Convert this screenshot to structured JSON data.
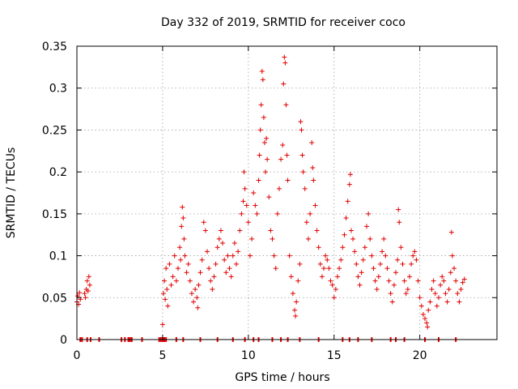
{
  "chart_data": {
    "type": "scatter",
    "title": "Day 332 of 2019, SRMTID for receiver coco",
    "xlabel": "GPS time / hours",
    "ylabel": "SRMTID / TECUs",
    "xlim": [
      0,
      24.5
    ],
    "ylim": [
      0,
      0.35
    ],
    "xticks": [
      0,
      5,
      10,
      15,
      20
    ],
    "yticks": [
      0,
      0.05,
      0.1,
      0.15,
      0.2,
      0.25,
      0.3,
      0.35
    ],
    "ytick_labels": [
      "0",
      "0.05",
      "0.1",
      "0.15",
      "0.2",
      "0.25",
      "0.3",
      "0.35"
    ],
    "grid": true,
    "series": [
      {
        "name": "SRMTID",
        "color": "#e00000",
        "marker": "+",
        "points": [
          [
            0.0,
            0.045
          ],
          [
            0.05,
            0.052
          ],
          [
            0.1,
            0.042
          ],
          [
            0.15,
            0.056
          ],
          [
            0.2,
            0.048
          ],
          [
            0.45,
            0.055
          ],
          [
            0.5,
            0.05
          ],
          [
            0.55,
            0.06
          ],
          [
            0.6,
            0.07
          ],
          [
            0.65,
            0.058
          ],
          [
            0.7,
            0.075
          ],
          [
            0.75,
            0.065
          ],
          [
            5.0,
            0.018
          ],
          [
            5.05,
            0.055
          ],
          [
            5.1,
            0.07
          ],
          [
            5.15,
            0.048
          ],
          [
            5.2,
            0.085
          ],
          [
            5.25,
            0.06
          ],
          [
            5.3,
            0.04
          ],
          [
            5.4,
            0.09
          ],
          [
            5.5,
            0.065
          ],
          [
            5.6,
            0.075
          ],
          [
            5.7,
            0.1
          ],
          [
            5.8,
            0.07
          ],
          [
            5.9,
            0.085
          ],
          [
            6.0,
            0.11
          ],
          [
            6.05,
            0.095
          ],
          [
            6.1,
            0.135
          ],
          [
            6.15,
            0.158
          ],
          [
            6.2,
            0.145
          ],
          [
            6.25,
            0.12
          ],
          [
            6.3,
            0.1
          ],
          [
            6.4,
            0.08
          ],
          [
            6.5,
            0.09
          ],
          [
            6.6,
            0.07
          ],
          [
            6.7,
            0.055
          ],
          [
            6.8,
            0.045
          ],
          [
            6.9,
            0.06
          ],
          [
            7.0,
            0.05
          ],
          [
            7.05,
            0.038
          ],
          [
            7.1,
            0.065
          ],
          [
            7.2,
            0.08
          ],
          [
            7.3,
            0.095
          ],
          [
            7.4,
            0.14
          ],
          [
            7.5,
            0.13
          ],
          [
            7.6,
            0.105
          ],
          [
            7.7,
            0.085
          ],
          [
            7.8,
            0.07
          ],
          [
            7.9,
            0.06
          ],
          [
            8.0,
            0.075
          ],
          [
            8.1,
            0.09
          ],
          [
            8.2,
            0.11
          ],
          [
            8.3,
            0.12
          ],
          [
            8.4,
            0.13
          ],
          [
            8.5,
            0.115
          ],
          [
            8.6,
            0.095
          ],
          [
            8.7,
            0.08
          ],
          [
            8.8,
            0.1
          ],
          [
            8.9,
            0.085
          ],
          [
            9.0,
            0.075
          ],
          [
            9.1,
            0.1
          ],
          [
            9.2,
            0.115
          ],
          [
            9.3,
            0.09
          ],
          [
            9.4,
            0.105
          ],
          [
            9.5,
            0.13
          ],
          [
            9.6,
            0.15
          ],
          [
            9.7,
            0.165
          ],
          [
            9.75,
            0.2
          ],
          [
            9.8,
            0.18
          ],
          [
            9.9,
            0.16
          ],
          [
            10.0,
            0.14
          ],
          [
            10.1,
            0.1
          ],
          [
            10.2,
            0.12
          ],
          [
            10.3,
            0.175
          ],
          [
            10.4,
            0.16
          ],
          [
            10.5,
            0.15
          ],
          [
            10.6,
            0.19
          ],
          [
            10.65,
            0.22
          ],
          [
            10.7,
            0.25
          ],
          [
            10.75,
            0.28
          ],
          [
            10.8,
            0.32
          ],
          [
            10.85,
            0.31
          ],
          [
            10.9,
            0.265
          ],
          [
            10.95,
            0.235
          ],
          [
            11.0,
            0.2
          ],
          [
            11.05,
            0.24
          ],
          [
            11.1,
            0.215
          ],
          [
            11.2,
            0.17
          ],
          [
            11.3,
            0.13
          ],
          [
            11.4,
            0.12
          ],
          [
            11.5,
            0.1
          ],
          [
            11.6,
            0.085
          ],
          [
            11.7,
            0.15
          ],
          [
            11.8,
            0.18
          ],
          [
            11.9,
            0.215
          ],
          [
            12.0,
            0.232
          ],
          [
            12.05,
            0.305
          ],
          [
            12.1,
            0.337
          ],
          [
            12.15,
            0.33
          ],
          [
            12.2,
            0.28
          ],
          [
            12.25,
            0.22
          ],
          [
            12.3,
            0.19
          ],
          [
            12.4,
            0.1
          ],
          [
            12.5,
            0.075
          ],
          [
            12.6,
            0.055
          ],
          [
            12.7,
            0.035
          ],
          [
            12.75,
            0.028
          ],
          [
            12.8,
            0.045
          ],
          [
            12.9,
            0.07
          ],
          [
            13.0,
            0.09
          ],
          [
            13.05,
            0.26
          ],
          [
            13.1,
            0.25
          ],
          [
            13.15,
            0.22
          ],
          [
            13.2,
            0.2
          ],
          [
            13.3,
            0.18
          ],
          [
            13.4,
            0.14
          ],
          [
            13.5,
            0.12
          ],
          [
            13.6,
            0.15
          ],
          [
            13.7,
            0.235
          ],
          [
            13.75,
            0.205
          ],
          [
            13.8,
            0.19
          ],
          [
            13.9,
            0.16
          ],
          [
            14.0,
            0.13
          ],
          [
            14.1,
            0.11
          ],
          [
            14.2,
            0.09
          ],
          [
            14.3,
            0.075
          ],
          [
            14.4,
            0.085
          ],
          [
            14.5,
            0.1
          ],
          [
            14.6,
            0.095
          ],
          [
            14.7,
            0.085
          ],
          [
            14.8,
            0.07
          ],
          [
            14.9,
            0.065
          ],
          [
            15.0,
            0.05
          ],
          [
            15.1,
            0.06
          ],
          [
            15.2,
            0.075
          ],
          [
            15.3,
            0.085
          ],
          [
            15.4,
            0.095
          ],
          [
            15.5,
            0.11
          ],
          [
            15.6,
            0.125
          ],
          [
            15.7,
            0.145
          ],
          [
            15.8,
            0.165
          ],
          [
            15.9,
            0.185
          ],
          [
            15.95,
            0.197
          ],
          [
            16.0,
            0.13
          ],
          [
            16.1,
            0.12
          ],
          [
            16.2,
            0.105
          ],
          [
            16.3,
            0.09
          ],
          [
            16.4,
            0.075
          ],
          [
            16.5,
            0.065
          ],
          [
            16.6,
            0.08
          ],
          [
            16.7,
            0.095
          ],
          [
            16.8,
            0.11
          ],
          [
            16.9,
            0.135
          ],
          [
            17.0,
            0.15
          ],
          [
            17.1,
            0.12
          ],
          [
            17.2,
            0.1
          ],
          [
            17.3,
            0.085
          ],
          [
            17.4,
            0.07
          ],
          [
            17.5,
            0.06
          ],
          [
            17.6,
            0.075
          ],
          [
            17.7,
            0.09
          ],
          [
            17.8,
            0.105
          ],
          [
            17.9,
            0.12
          ],
          [
            18.0,
            0.1
          ],
          [
            18.1,
            0.085
          ],
          [
            18.2,
            0.07
          ],
          [
            18.3,
            0.055
          ],
          [
            18.4,
            0.045
          ],
          [
            18.5,
            0.065
          ],
          [
            18.6,
            0.08
          ],
          [
            18.7,
            0.095
          ],
          [
            18.75,
            0.155
          ],
          [
            18.8,
            0.14
          ],
          [
            18.9,
            0.11
          ],
          [
            19.0,
            0.09
          ],
          [
            19.1,
            0.07
          ],
          [
            19.2,
            0.055
          ],
          [
            19.3,
            0.06
          ],
          [
            19.4,
            0.075
          ],
          [
            19.5,
            0.09
          ],
          [
            19.6,
            0.1
          ],
          [
            19.7,
            0.105
          ],
          [
            19.8,
            0.095
          ],
          [
            19.9,
            0.07
          ],
          [
            20.0,
            0.05
          ],
          [
            20.1,
            0.04
          ],
          [
            20.2,
            0.03
          ],
          [
            20.3,
            0.025
          ],
          [
            20.4,
            0.02
          ],
          [
            20.45,
            0.015
          ],
          [
            20.5,
            0.035
          ],
          [
            20.6,
            0.045
          ],
          [
            20.7,
            0.06
          ],
          [
            20.8,
            0.07
          ],
          [
            20.9,
            0.055
          ],
          [
            21.0,
            0.04
          ],
          [
            21.1,
            0.05
          ],
          [
            21.2,
            0.065
          ],
          [
            21.3,
            0.075
          ],
          [
            21.4,
            0.07
          ],
          [
            21.5,
            0.055
          ],
          [
            21.6,
            0.045
          ],
          [
            21.7,
            0.06
          ],
          [
            21.8,
            0.08
          ],
          [
            21.85,
            0.128
          ],
          [
            21.9,
            0.1
          ],
          [
            22.0,
            0.085
          ],
          [
            22.1,
            0.07
          ],
          [
            22.2,
            0.055
          ],
          [
            22.3,
            0.045
          ],
          [
            22.4,
            0.06
          ],
          [
            22.5,
            0.068
          ],
          [
            22.6,
            0.072
          ]
        ]
      }
    ],
    "zero_markers_x": [
      0.2,
      0.3,
      0.6,
      0.8,
      1.3,
      2.6,
      2.8,
      3.0,
      3.1,
      3.2,
      3.8,
      4.8,
      4.9,
      5.0,
      5.1,
      5.2,
      5.8,
      6.2,
      7.2,
      8.2,
      9.1,
      9.8,
      10.3,
      10.6,
      11.4,
      11.9,
      12.3,
      13.0,
      14.1,
      15.5,
      15.9,
      16.4,
      17.2,
      18.3,
      18.6,
      19.1,
      20.3,
      21.1,
      22.1
    ]
  }
}
